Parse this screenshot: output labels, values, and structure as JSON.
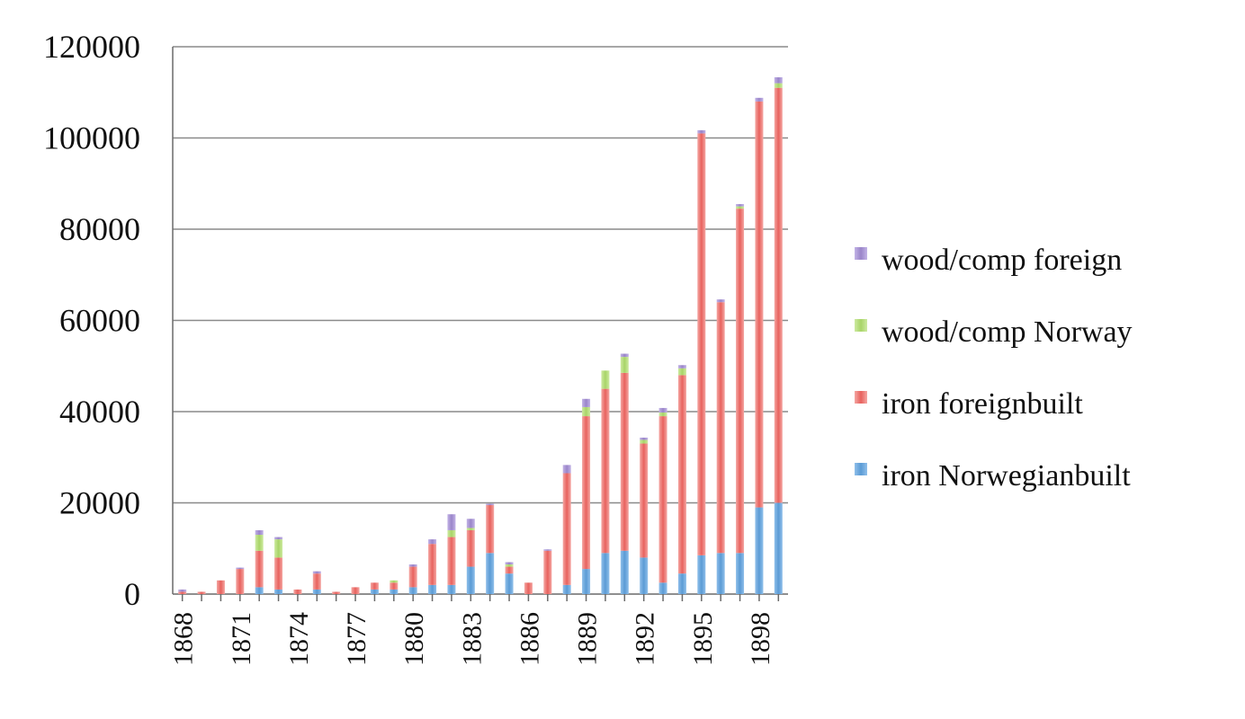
{
  "chart_data": {
    "type": "bar",
    "stacked": true,
    "title": "",
    "xlabel": "",
    "ylabel": "",
    "ylim": [
      0,
      120000
    ],
    "yticks": [
      0,
      20000,
      40000,
      60000,
      80000,
      100000,
      120000
    ],
    "ytick_labels": [
      "0",
      "20000",
      "40000",
      "60000",
      "80000",
      "100000",
      "120000"
    ],
    "grid": true,
    "legend_position": "right",
    "xtick_labels": [
      "1868",
      "1871",
      "1874",
      "1877",
      "1880",
      "1883",
      "1886",
      "1889",
      "1892",
      "1895",
      "1898"
    ],
    "categories": [
      "1868",
      "1869",
      "1870",
      "1871",
      "1872",
      "1873",
      "1874",
      "1875",
      "1876",
      "1877",
      "1878",
      "1879",
      "1880",
      "1881",
      "1882",
      "1883",
      "1884",
      "1885",
      "1886",
      "1887",
      "1888",
      "1889",
      "1890",
      "1891",
      "1892",
      "1893",
      "1894",
      "1895",
      "1896",
      "1897",
      "1898",
      "1899"
    ],
    "series": [
      {
        "name": "iron Norwegianbuilt",
        "color": "#5b9bd5",
        "values": [
          0,
          0,
          0,
          0,
          1500,
          1000,
          0,
          1000,
          0,
          0,
          1000,
          1000,
          1500,
          2000,
          2000,
          6000,
          9000,
          4500,
          0,
          0,
          2000,
          5500,
          9000,
          9500,
          8000,
          2500,
          4500,
          8500,
          9000,
          9000,
          19000,
          20000
        ]
      },
      {
        "name": "iron foreignbuilt",
        "color": "#e8625e",
        "values": [
          500,
          500,
          3000,
          5500,
          8000,
          7000,
          1000,
          3500,
          500,
          1500,
          1500,
          1500,
          4500,
          9000,
          10500,
          8000,
          10500,
          1500,
          2500,
          9500,
          24500,
          33500,
          36000,
          39000,
          25000,
          36500,
          43500,
          92500,
          55000,
          75500,
          89000,
          91000
        ]
      },
      {
        "name": "wood/comp Norway",
        "color": "#a8d468",
        "values": [
          0,
          0,
          0,
          0,
          3500,
          4000,
          0,
          0,
          0,
          0,
          0,
          500,
          0,
          0,
          1500,
          500,
          0,
          500,
          0,
          0,
          0,
          2000,
          4000,
          3500,
          800,
          800,
          1500,
          0,
          0,
          500,
          0,
          1000
        ]
      },
      {
        "name": "wood/comp foreign",
        "color": "#9a85c9",
        "values": [
          500,
          0,
          0,
          300,
          1000,
          500,
          0,
          500,
          0,
          0,
          0,
          0,
          500,
          1000,
          3500,
          2000,
          300,
          500,
          0,
          300,
          1800,
          1800,
          0,
          700,
          500,
          1000,
          700,
          700,
          600,
          500,
          800,
          1300
        ]
      }
    ],
    "legend_order": [
      "wood/comp foreign",
      "wood/comp Norway",
      "iron foreignbuilt",
      "iron Norwegianbuilt"
    ]
  }
}
